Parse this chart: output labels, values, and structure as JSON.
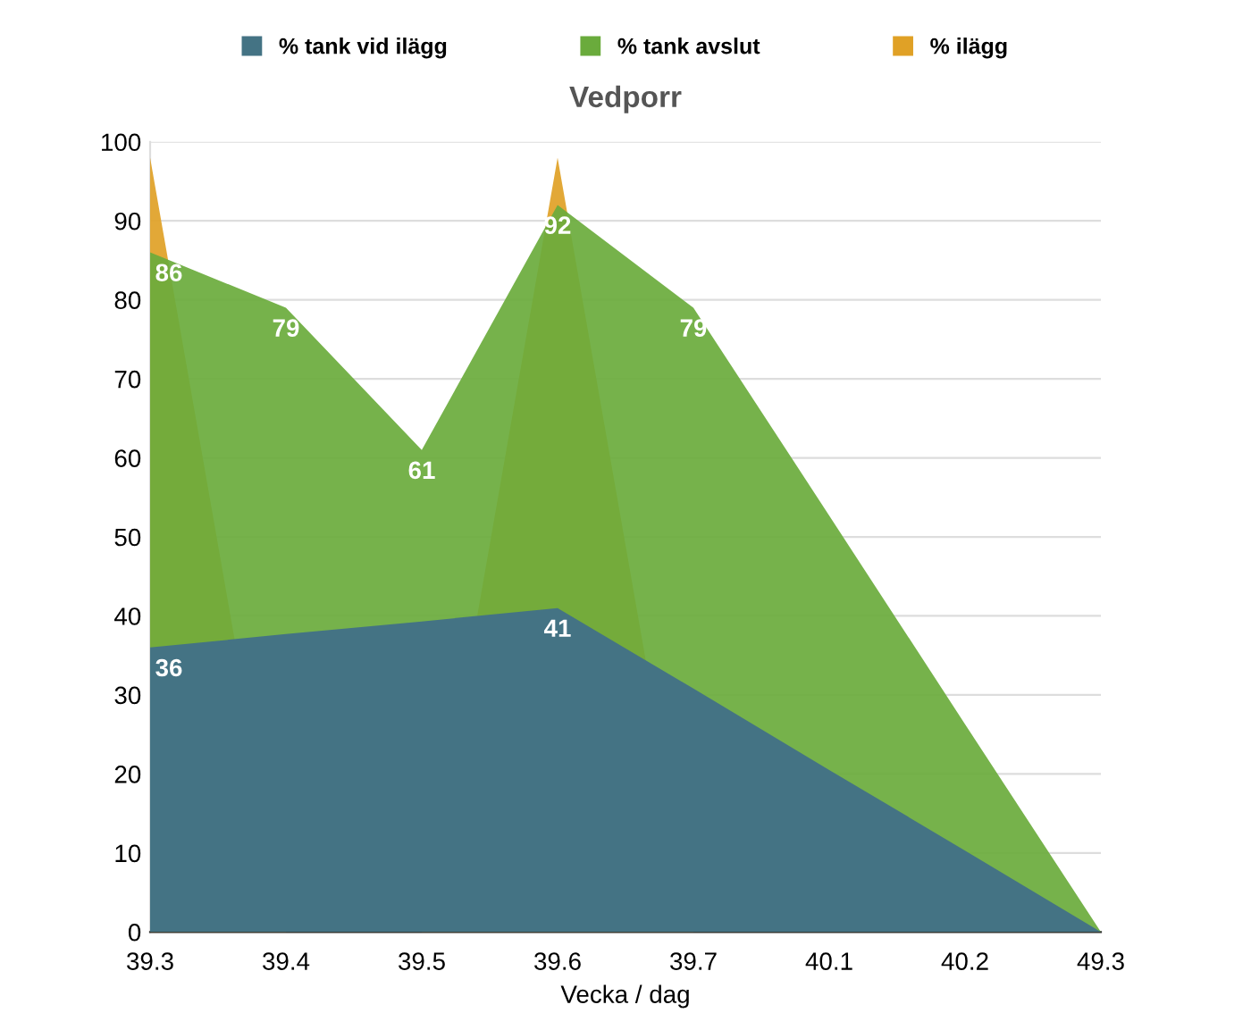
{
  "chart_data": {
    "type": "area",
    "title": "Vedporr",
    "xlabel": "Vecka / dag",
    "categories": [
      "39.3",
      "39.4",
      "39.5",
      "39.6",
      "39.7",
      "40.1",
      "40.2",
      "49.3"
    ],
    "series": [
      {
        "name": "% tank vid ilägg",
        "color": "#447384",
        "values": [
          36,
          37.7,
          39.3,
          41,
          30.8,
          20.5,
          10.3,
          0
        ],
        "value_labels": [
          "36",
          null,
          null,
          "41",
          null,
          null,
          null,
          null
        ]
      },
      {
        "name": "% tank avslut",
        "color": "#6aab3c",
        "values": [
          86,
          79,
          61,
          92,
          79,
          52.7,
          26.3,
          0
        ],
        "value_labels": [
          "86",
          "79",
          "61",
          "92",
          "79",
          null,
          null,
          null
        ]
      },
      {
        "name": "% ilägg",
        "color": "#e0a126",
        "values": [
          98,
          0,
          0,
          98,
          0,
          0,
          0,
          0
        ]
      }
    ],
    "ylim": [
      0,
      100
    ],
    "yticks": [
      0,
      10,
      20,
      30,
      40,
      50,
      60,
      70,
      80,
      90,
      100
    ],
    "grid": "y",
    "legend": "top"
  }
}
